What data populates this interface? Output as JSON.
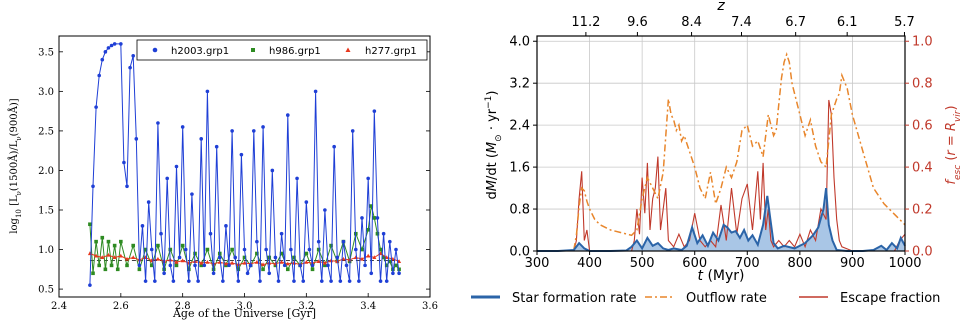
{
  "chart_data": [
    {
      "type": "line",
      "xlabel": "Age of the Universe [Gyr]",
      "ylabel": "log$_{10}$ [L$_\\nu$(1500Å)/L$_\\nu$(900Å)]",
      "ylabel_parts": {
        "pre": "log",
        "sub": "10",
        "mid": " [L",
        "nu1": "ν",
        "mid2": "(1500Å)/L",
        "nu2": "ν",
        "post": "(900Å)]"
      },
      "xlim": [
        2.4,
        3.6
      ],
      "ylim": [
        0.4,
        3.7
      ],
      "xticks": [
        "2.4",
        "2.6",
        "2.8",
        "3.0",
        "3.2",
        "3.4",
        "3.6"
      ],
      "yticks": [
        "0.5",
        "1.0",
        "1.5",
        "2.0",
        "2.5",
        "3.0",
        "3.5"
      ],
      "grid": false,
      "legend_position": "top-right",
      "reference_line": 0.86,
      "series": [
        {
          "name": "h2003.grp1",
          "color": "#1f3fd6",
          "marker": "circle",
          "x": [
            2.5,
            2.51,
            2.52,
            2.53,
            2.54,
            2.55,
            2.56,
            2.57,
            2.58,
            2.6,
            2.61,
            2.62,
            2.63,
            2.64,
            2.65,
            2.66,
            2.67,
            2.68,
            2.69,
            2.7,
            2.71,
            2.72,
            2.73,
            2.74,
            2.75,
            2.76,
            2.77,
            2.78,
            2.79,
            2.8,
            2.81,
            2.82,
            2.83,
            2.84,
            2.85,
            2.86,
            2.87,
            2.88,
            2.89,
            2.9,
            2.91,
            2.92,
            2.93,
            2.94,
            2.95,
            2.96,
            2.97,
            2.98,
            2.99,
            3.0,
            3.01,
            3.02,
            3.03,
            3.04,
            3.05,
            3.06,
            3.07,
            3.08,
            3.09,
            3.1,
            3.11,
            3.12,
            3.13,
            3.14,
            3.15,
            3.16,
            3.17,
            3.18,
            3.19,
            3.2,
            3.21,
            3.22,
            3.23,
            3.24,
            3.25,
            3.26,
            3.27,
            3.28,
            3.29,
            3.3,
            3.31,
            3.32,
            3.33,
            3.34,
            3.35,
            3.36,
            3.37,
            3.38,
            3.39,
            3.4,
            3.41,
            3.42,
            3.43,
            3.44,
            3.45,
            3.46,
            3.47,
            3.48,
            3.49,
            3.5
          ],
          "y": [
            0.55,
            1.8,
            2.8,
            3.2,
            3.4,
            3.5,
            3.55,
            3.58,
            3.6,
            3.6,
            2.1,
            1.8,
            3.3,
            3.45,
            2.4,
            0.8,
            1.3,
            0.6,
            1.6,
            1.0,
            0.6,
            2.6,
            1.2,
            0.7,
            1.9,
            0.8,
            0.6,
            2.05,
            0.9,
            2.55,
            1.0,
            0.6,
            1.7,
            0.8,
            0.6,
            2.4,
            0.8,
            3.0,
            1.2,
            0.7,
            2.3,
            0.9,
            0.6,
            1.3,
            0.8,
            2.5,
            0.9,
            0.6,
            2.2,
            1.0,
            0.7,
            0.8,
            2.5,
            1.1,
            0.6,
            2.55,
            1.0,
            0.7,
            2.0,
            0.9,
            0.6,
            1.2,
            0.8,
            2.7,
            1.0,
            0.6,
            1.9,
            0.8,
            0.6,
            1.6,
            1.0,
            0.8,
            3.0,
            1.1,
            0.6,
            1.5,
            0.8,
            0.6,
            2.3,
            0.9,
            0.6,
            1.1,
            0.8,
            0.6,
            2.5,
            1.0,
            0.6,
            1.4,
            0.8,
            1.9,
            0.7,
            2.75,
            1.4,
            0.6,
            1.2,
            0.6,
            1.1,
            0.7,
            1.0,
            0.7
          ]
        },
        {
          "name": "h986.grp1",
          "color": "#2e8b22",
          "marker": "square",
          "x": [
            2.5,
            2.51,
            2.52,
            2.53,
            2.54,
            2.55,
            2.56,
            2.57,
            2.58,
            2.59,
            2.6,
            2.62,
            2.64,
            2.66,
            2.68,
            2.7,
            2.72,
            2.74,
            2.76,
            2.78,
            2.8,
            2.82,
            2.84,
            2.86,
            2.88,
            2.9,
            2.92,
            2.94,
            2.96,
            2.98,
            3.0,
            3.02,
            3.04,
            3.06,
            3.08,
            3.1,
            3.12,
            3.14,
            3.16,
            3.18,
            3.2,
            3.22,
            3.24,
            3.26,
            3.28,
            3.3,
            3.32,
            3.34,
            3.36,
            3.38,
            3.4,
            3.41,
            3.42,
            3.43,
            3.44,
            3.45,
            3.46,
            3.47,
            3.48,
            3.49,
            3.5
          ],
          "y": [
            1.32,
            0.7,
            1.1,
            0.8,
            1.15,
            0.75,
            1.1,
            0.8,
            1.05,
            0.75,
            1.1,
            0.8,
            1.05,
            0.75,
            1.0,
            0.8,
            1.05,
            0.75,
            1.0,
            0.8,
            1.05,
            0.75,
            0.95,
            0.8,
            1.0,
            0.75,
            0.95,
            0.8,
            1.0,
            0.75,
            0.9,
            0.8,
            0.95,
            0.75,
            0.9,
            0.8,
            0.95,
            0.75,
            0.9,
            0.8,
            0.95,
            0.75,
            1.0,
            0.8,
            1.05,
            0.85,
            1.1,
            0.85,
            1.2,
            1.0,
            1.25,
            1.55,
            1.4,
            1.2,
            1.0,
            0.9,
            0.8,
            0.85,
            0.75,
            0.8,
            0.75
          ]
        },
        {
          "name": "h277.grp1",
          "color": "#e8381d",
          "marker": "triangle",
          "x": [
            2.5,
            2.52,
            2.54,
            2.56,
            2.58,
            2.6,
            2.62,
            2.64,
            2.66,
            2.68,
            2.7,
            2.72,
            2.74,
            2.76,
            2.78,
            2.8,
            2.82,
            2.84,
            2.86,
            2.88,
            2.9,
            2.92,
            2.94,
            2.96,
            2.98,
            3.0,
            3.02,
            3.04,
            3.06,
            3.08,
            3.1,
            3.12,
            3.14,
            3.16,
            3.18,
            3.2,
            3.22,
            3.24,
            3.26,
            3.28,
            3.3,
            3.32,
            3.34,
            3.36,
            3.38,
            3.4,
            3.42,
            3.44,
            3.46,
            3.48,
            3.5
          ],
          "y": [
            0.95,
            0.92,
            0.9,
            0.93,
            0.9,
            0.92,
            0.88,
            0.9,
            0.87,
            0.9,
            0.86,
            0.88,
            0.85,
            0.87,
            0.84,
            0.86,
            0.83,
            0.85,
            0.83,
            0.84,
            0.82,
            0.84,
            0.82,
            0.83,
            0.81,
            0.83,
            0.82,
            0.84,
            0.81,
            0.83,
            0.82,
            0.84,
            0.82,
            0.83,
            0.81,
            0.84,
            0.83,
            0.85,
            0.83,
            0.86,
            0.85,
            0.88,
            0.87,
            0.9,
            0.88,
            0.92,
            0.9,
            0.95,
            0.9,
            0.88,
            0.85
          ]
        }
      ]
    },
    {
      "type": "line",
      "xlabel": "t (Myr)",
      "xlabel_parts": {
        "t": "t",
        "rest": " (Myr)"
      },
      "ylabel": "dM/dt (M⊙ yr⁻¹)",
      "ylabel_parts": {
        "pre": "d",
        "m": "M",
        "slash": "/dt (",
        "m2": "M",
        "sun": "⊙",
        "dot": " · yr",
        "exp": "−1",
        "close": ")"
      },
      "ylabel_right": "f_esc (r = R_vir)",
      "ylabel_right_parts": {
        "f": "f",
        "esc": "esc",
        "open": " (",
        "r": "r",
        "eq": " = ",
        "R": "R",
        "vir": "vir",
        "close": ")"
      },
      "top_axis_label": "z",
      "xlim": [
        300,
        1000
      ],
      "ylim": [
        0,
        4.1
      ],
      "ylim_right": [
        0,
        1.025
      ],
      "xticks": [
        "300",
        "400",
        "500",
        "600",
        "700",
        "800",
        "900",
        "1000"
      ],
      "yticks": [
        "0.0",
        "0.8",
        "1.6",
        "2.4",
        "3.2",
        "4.0"
      ],
      "yticks_right": [
        "0.0",
        "0.2",
        "0.4",
        "0.6",
        "0.8",
        "1.0"
      ],
      "top_ticks": [
        {
          "t": 393,
          "label": "11.2"
        },
        {
          "t": 491,
          "label": "9.6"
        },
        {
          "t": 594,
          "label": "8.4"
        },
        {
          "t": 689,
          "label": "7.4"
        },
        {
          "t": 792,
          "label": "6.7"
        },
        {
          "t": 890,
          "label": "6.1"
        },
        {
          "t": 999,
          "label": "5.7"
        }
      ],
      "grid": true,
      "legend_position": "bottom",
      "series": [
        {
          "name": "Star formation rate",
          "color": "#2b64a8",
          "fill": "#a9c6e6",
          "style": "solid",
          "axis": "left",
          "x": [
            300,
            340,
            370,
            380,
            390,
            400,
            440,
            470,
            480,
            490,
            500,
            510,
            520,
            530,
            540,
            550,
            560,
            575,
            585,
            595,
            605,
            615,
            625,
            635,
            645,
            655,
            662,
            670,
            678,
            686,
            694,
            702,
            710,
            720,
            730,
            738,
            744,
            750,
            758,
            770,
            790,
            810,
            825,
            835,
            845,
            850,
            855,
            862,
            870,
            890,
            920,
            940,
            955,
            965,
            975,
            985,
            992,
            1000
          ],
          "y": [
            0,
            0,
            0.02,
            0.15,
            0.05,
            0,
            0,
            0.01,
            0.08,
            0.2,
            0.05,
            0.25,
            0.1,
            0.15,
            0.05,
            0.02,
            0.05,
            0.02,
            0.1,
            0.45,
            0.15,
            0.3,
            0.1,
            0.35,
            0.2,
            0.5,
            0.45,
            0.35,
            0.38,
            0.25,
            0.4,
            0.2,
            0.3,
            0.12,
            0.5,
            1.05,
            0.6,
            0.15,
            0.05,
            0.1,
            0.05,
            0.15,
            0.3,
            0.45,
            0.8,
            1.2,
            0.5,
            0.2,
            0.02,
            0,
            0,
            0.02,
            0.1,
            0.02,
            0.15,
            0.05,
            0.25,
            0.1
          ]
        },
        {
          "name": "Outflow rate",
          "color": "#e8862c",
          "style": "dashdot",
          "axis": "left",
          "x": [
            370,
            375,
            380,
            385,
            390,
            395,
            400,
            410,
            420,
            440,
            460,
            480,
            490,
            500,
            510,
            520,
            530,
            540,
            545,
            550,
            555,
            560,
            565,
            570,
            575,
            580,
            590,
            600,
            610,
            620,
            630,
            640,
            650,
            660,
            670,
            680,
            690,
            700,
            710,
            720,
            730,
            740,
            750,
            755,
            760,
            765,
            770,
            775,
            780,
            785,
            790,
            800,
            810,
            820,
            830,
            840,
            850,
            860,
            870,
            875,
            880,
            890,
            900,
            920,
            940,
            960,
            980,
            990,
            1000
          ],
          "y": [
            0.02,
            0.3,
            0.85,
            1.2,
            1.15,
            0.95,
            0.8,
            0.6,
            0.5,
            0.4,
            0.35,
            0.3,
            0.4,
            1.0,
            1.4,
            1.2,
            1.0,
            1.5,
            2.2,
            2.9,
            2.6,
            2.5,
            2.3,
            2.4,
            2.1,
            2.2,
            1.9,
            1.6,
            1.2,
            1.0,
            1.5,
            0.9,
            1.2,
            1.6,
            1.4,
            1.7,
            2.3,
            2.4,
            2.0,
            2.1,
            1.8,
            2.6,
            2.2,
            2.3,
            2.8,
            3.3,
            3.6,
            3.75,
            3.6,
            3.2,
            3.0,
            2.6,
            2.2,
            2.5,
            2.0,
            1.7,
            1.6,
            2.6,
            2.9,
            3.0,
            3.35,
            3.1,
            2.6,
            1.9,
            1.2,
            0.9,
            0.7,
            0.6,
            0.5
          ]
        },
        {
          "name": "Escape fraction",
          "color": "#c0392b",
          "style": "solid",
          "axis": "right",
          "x": [
            300,
            370,
            375,
            380,
            385,
            390,
            395,
            400,
            480,
            485,
            490,
            495,
            500,
            505,
            510,
            515,
            520,
            525,
            530,
            535,
            540,
            545,
            550,
            560,
            570,
            580,
            590,
            600,
            610,
            620,
            630,
            640,
            650,
            660,
            670,
            680,
            690,
            700,
            710,
            720,
            725,
            730,
            735,
            740,
            745,
            750,
            760,
            770,
            780,
            790,
            800,
            810,
            820,
            830,
            840,
            850,
            855,
            860,
            865,
            870,
            875,
            880,
            890,
            900,
            950,
            980,
            990,
            1000
          ],
          "y": [
            0,
            0,
            0.05,
            0.25,
            0.38,
            0.05,
            0.1,
            0,
            0,
            0.05,
            0.2,
            0.08,
            0.35,
            0.18,
            0.42,
            0.1,
            0.25,
            0.3,
            0.45,
            0.1,
            0.2,
            0.3,
            0.05,
            0.02,
            0.08,
            0.02,
            0.05,
            0.18,
            0.05,
            0.02,
            0.05,
            0.02,
            0.22,
            0.05,
            0.3,
            0.08,
            0.25,
            0.32,
            0.1,
            0.38,
            0.15,
            0.42,
            0.1,
            0.2,
            0.05,
            0.02,
            0.05,
            0.02,
            0.05,
            0.02,
            0.08,
            0.02,
            0.1,
            0.05,
            0.2,
            0.15,
            0.72,
            0.65,
            0.35,
            0.15,
            0.05,
            0.02,
            0.01,
            0,
            0,
            0,
            0.05,
            0.08
          ]
        }
      ]
    }
  ]
}
